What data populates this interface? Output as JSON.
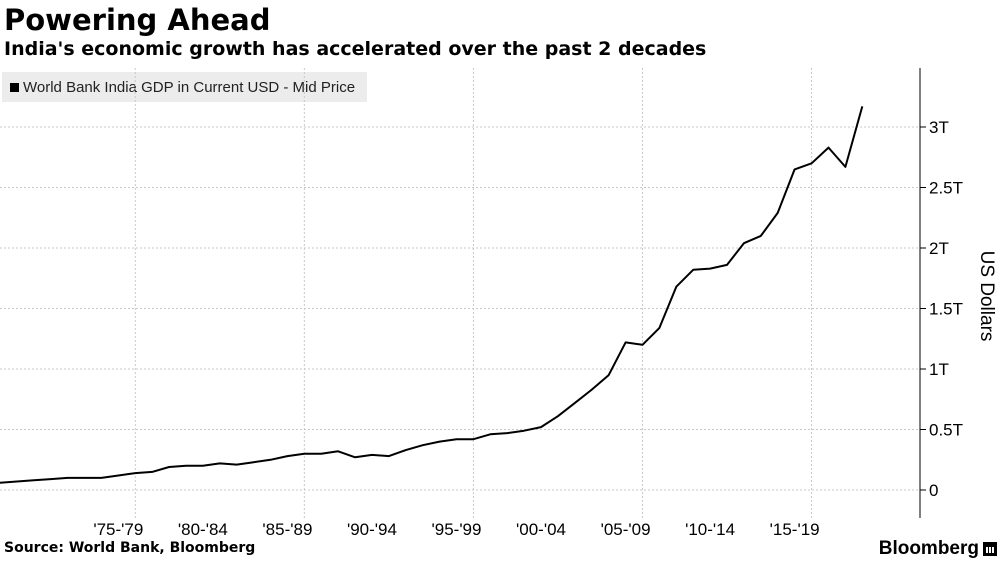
{
  "header": {
    "title": "Powering Ahead",
    "subtitle": "India's economic growth has accelerated over the past 2 decades"
  },
  "footer": {
    "source": "Source: World Bank, Bloomberg",
    "brand": "Bloomberg"
  },
  "colors": {
    "line": "#000000",
    "grid": "#c8c8c8",
    "legend_bg": "#ececec"
  },
  "chart_data": {
    "type": "line",
    "title": "Powering Ahead",
    "subtitle": "India's economic growth has accelerated over the past 2 decades",
    "xlabel": "",
    "ylabel": "US Dollars",
    "legend": [
      "World Bank India GDP in Current USD - Mid Price"
    ],
    "legend_position": "top-left",
    "grid": true,
    "xlim": [
      1970,
      2024
    ],
    "ylim": [
      -0.2,
      3.5
    ],
    "x_tick_labels": [
      {
        "label": "'75-'79",
        "center": 1977
      },
      {
        "label": "'80-'84",
        "center": 1982
      },
      {
        "label": "'85-'89",
        "center": 1987
      },
      {
        "label": "'90-'94",
        "center": 1992
      },
      {
        "label": "'95-'99",
        "center": 1997
      },
      {
        "label": "'00-'04",
        "center": 2002
      },
      {
        "label": "'05-'09",
        "center": 2007
      },
      {
        "label": "'10-'14",
        "center": 2012
      },
      {
        "label": "'15-'19",
        "center": 2017
      }
    ],
    "x_grid_years": [
      1978,
      1988,
      1998,
      2008,
      2018
    ],
    "y_ticks": [
      {
        "value": 0,
        "label": "0"
      },
      {
        "value": 0.5,
        "label": "0.5T"
      },
      {
        "value": 1.0,
        "label": "1T"
      },
      {
        "value": 1.5,
        "label": "1.5T"
      },
      {
        "value": 2.0,
        "label": "2T"
      },
      {
        "value": 2.5,
        "label": "2.5T"
      },
      {
        "value": 3.0,
        "label": "3T"
      }
    ],
    "series": [
      {
        "name": "World Bank India GDP in Current USD - Mid Price",
        "x": [
          1970,
          1971,
          1972,
          1973,
          1974,
          1975,
          1976,
          1977,
          1978,
          1979,
          1980,
          1981,
          1982,
          1983,
          1984,
          1985,
          1986,
          1987,
          1988,
          1989,
          1990,
          1991,
          1992,
          1993,
          1994,
          1995,
          1996,
          1997,
          1998,
          1999,
          2000,
          2001,
          2002,
          2003,
          2004,
          2005,
          2006,
          2007,
          2008,
          2009,
          2010,
          2011,
          2012,
          2013,
          2014,
          2015,
          2016,
          2017,
          2018,
          2019,
          2020,
          2021
        ],
        "values": [
          0.06,
          0.07,
          0.08,
          0.09,
          0.1,
          0.1,
          0.1,
          0.12,
          0.14,
          0.15,
          0.19,
          0.2,
          0.2,
          0.22,
          0.21,
          0.23,
          0.25,
          0.28,
          0.3,
          0.3,
          0.32,
          0.27,
          0.29,
          0.28,
          0.33,
          0.37,
          0.4,
          0.42,
          0.42,
          0.46,
          0.47,
          0.49,
          0.52,
          0.61,
          0.72,
          0.83,
          0.95,
          1.22,
          1.2,
          1.34,
          1.68,
          1.82,
          1.83,
          1.86,
          2.04,
          2.1,
          2.29,
          2.65,
          2.7,
          2.83,
          2.67,
          3.17
        ]
      }
    ]
  }
}
